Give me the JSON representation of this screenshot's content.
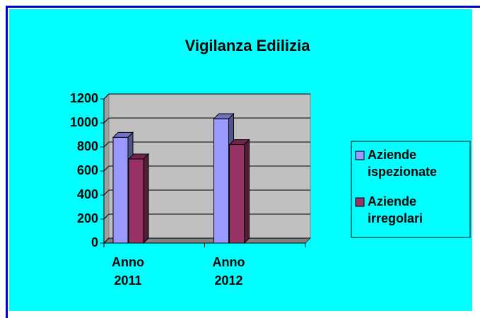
{
  "chart_data": {
    "type": "bar3d",
    "title": "Vigilanza Edilizia",
    "categories": [
      "Anno 2011",
      "Anno 2012"
    ],
    "series": [
      {
        "name": "Aziende ispezionate",
        "color": "#9999ff",
        "values": [
          880,
          1035
        ]
      },
      {
        "name": "Aziende irregolari",
        "color": "#993366",
        "values": [
          700,
          820
        ]
      }
    ],
    "ylim": [
      0,
      1200
    ],
    "yticks": [
      0,
      200,
      400,
      600,
      800,
      1000,
      1200
    ],
    "grid": true,
    "legend": "right"
  }
}
